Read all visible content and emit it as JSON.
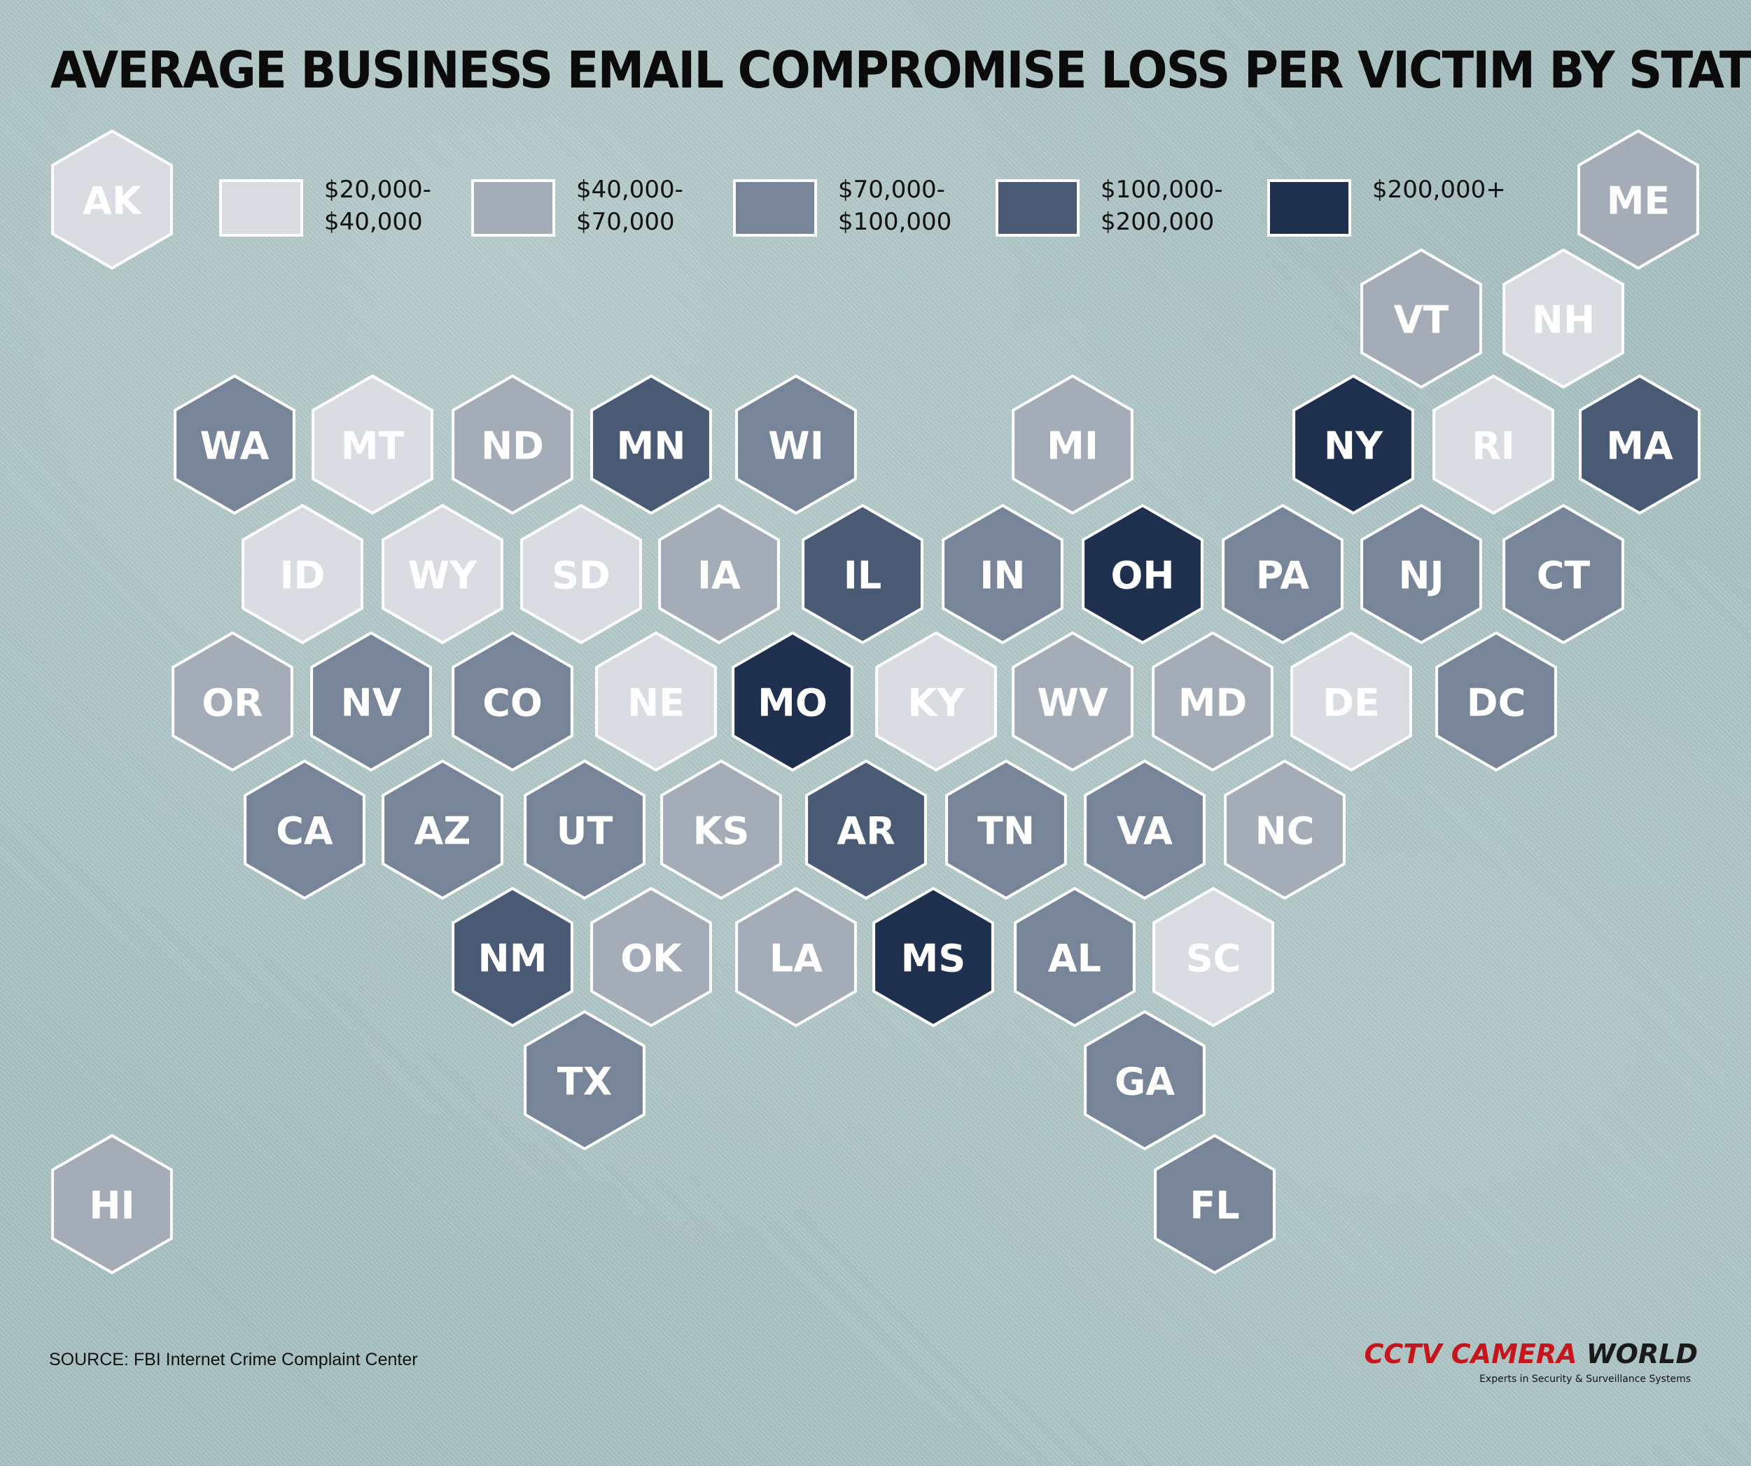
{
  "title": "AVERAGE BUSINESS EMAIL COMPROMISE LOSS PER VICTIM BY STATE",
  "legend": [
    {
      "id": 1,
      "label": "$20,000-\n$40,000",
      "color": "#d9dde2"
    },
    {
      "id": 2,
      "label": "$40,000-\n$70,000",
      "color": "#a4acb8"
    },
    {
      "id": 3,
      "label": "$70,000-\n$100,000",
      "color": "#788599"
    },
    {
      "id": 4,
      "label": "$100,000-\n$200,000",
      "color": "#4a5a74"
    },
    {
      "id": 5,
      "label": "$200,000+",
      "color": "#1f2f4e"
    }
  ],
  "states": [
    {
      "code": "AK",
      "bin": 1
    },
    {
      "code": "ME",
      "bin": 2
    },
    {
      "code": "VT",
      "bin": 2
    },
    {
      "code": "NH",
      "bin": 1
    },
    {
      "code": "WA",
      "bin": 3
    },
    {
      "code": "MT",
      "bin": 1
    },
    {
      "code": "ND",
      "bin": 2
    },
    {
      "code": "MN",
      "bin": 4
    },
    {
      "code": "WI",
      "bin": 3
    },
    {
      "code": "MI",
      "bin": 2
    },
    {
      "code": "NY",
      "bin": 5
    },
    {
      "code": "RI",
      "bin": 1
    },
    {
      "code": "MA",
      "bin": 4
    },
    {
      "code": "ID",
      "bin": 1
    },
    {
      "code": "WY",
      "bin": 1
    },
    {
      "code": "SD",
      "bin": 1
    },
    {
      "code": "IA",
      "bin": 2
    },
    {
      "code": "IL",
      "bin": 4
    },
    {
      "code": "IN",
      "bin": 3
    },
    {
      "code": "OH",
      "bin": 5
    },
    {
      "code": "PA",
      "bin": 3
    },
    {
      "code": "NJ",
      "bin": 3
    },
    {
      "code": "CT",
      "bin": 3
    },
    {
      "code": "OR",
      "bin": 2
    },
    {
      "code": "NV",
      "bin": 3
    },
    {
      "code": "CO",
      "bin": 3
    },
    {
      "code": "NE",
      "bin": 1
    },
    {
      "code": "MO",
      "bin": 5
    },
    {
      "code": "KY",
      "bin": 1
    },
    {
      "code": "WV",
      "bin": 2
    },
    {
      "code": "MD",
      "bin": 2
    },
    {
      "code": "DE",
      "bin": 1
    },
    {
      "code": "DC",
      "bin": 3
    },
    {
      "code": "CA",
      "bin": 3
    },
    {
      "code": "AZ",
      "bin": 3
    },
    {
      "code": "UT",
      "bin": 3
    },
    {
      "code": "KS",
      "bin": 2
    },
    {
      "code": "AR",
      "bin": 4
    },
    {
      "code": "TN",
      "bin": 3
    },
    {
      "code": "VA",
      "bin": 3
    },
    {
      "code": "NC",
      "bin": 2
    },
    {
      "code": "NM",
      "bin": 4
    },
    {
      "code": "OK",
      "bin": 2
    },
    {
      "code": "LA",
      "bin": 2
    },
    {
      "code": "MS",
      "bin": 5
    },
    {
      "code": "AL",
      "bin": 3
    },
    {
      "code": "SC",
      "bin": 1
    },
    {
      "code": "TX",
      "bin": 3
    },
    {
      "code": "GA",
      "bin": 3
    },
    {
      "code": "HI",
      "bin": 2
    },
    {
      "code": "FL",
      "bin": 3
    }
  ],
  "source": "SOURCE: FBI Internet Crime Complaint Center",
  "logo": {
    "part1": "CCTV CAMERA",
    "part2": "WORLD",
    "tagline": "Experts in Security & Surveillance Systems"
  }
}
